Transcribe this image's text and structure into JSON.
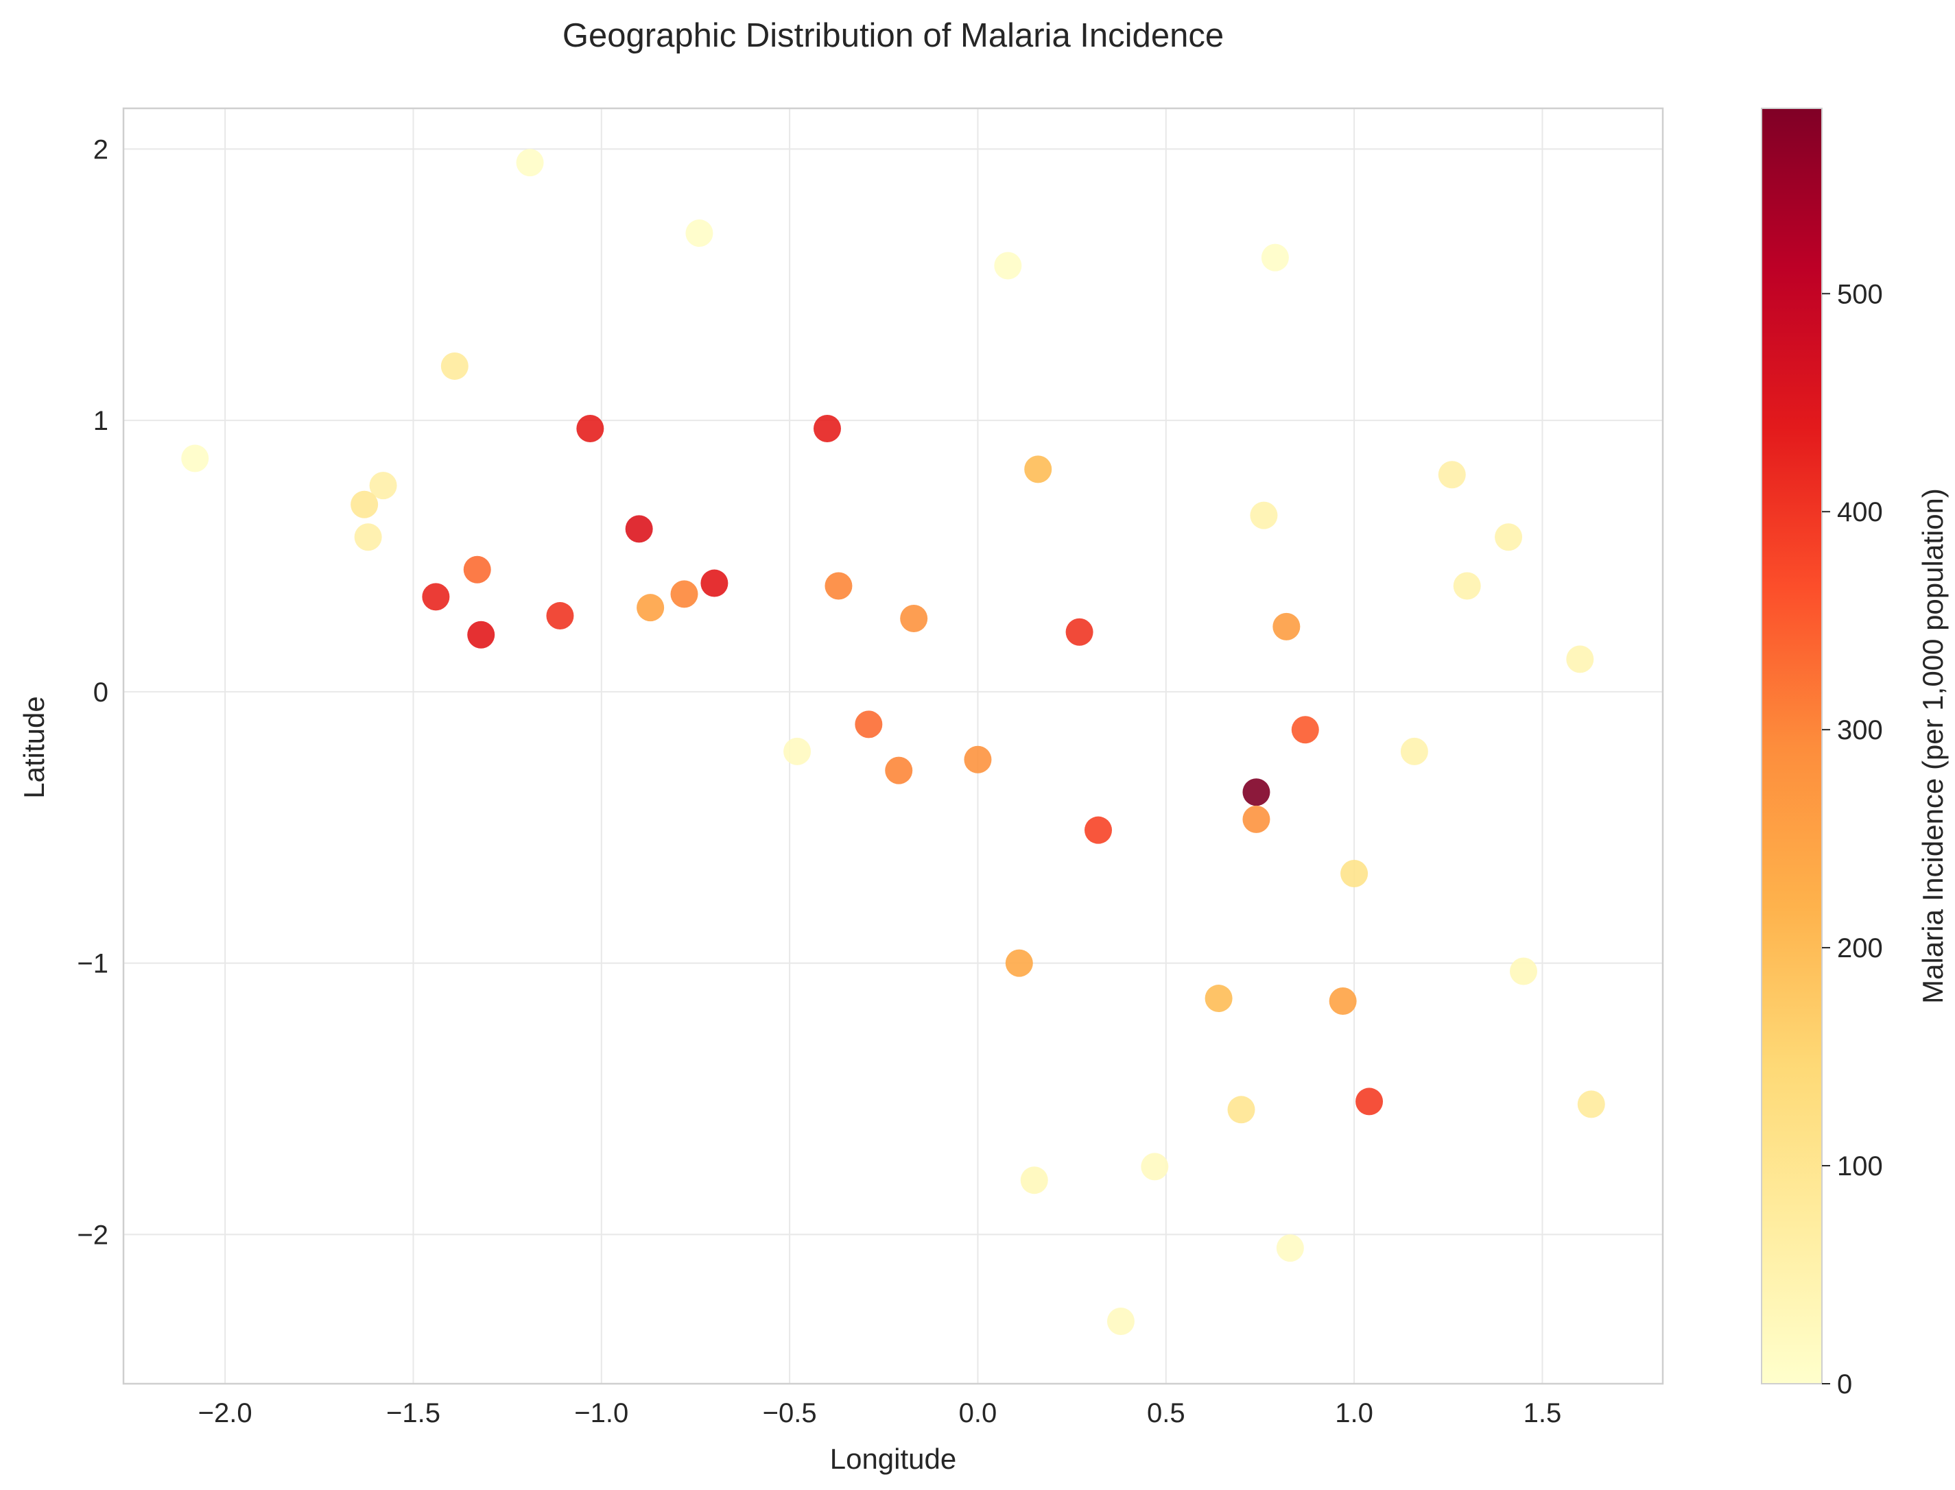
{
  "chart_data": {
    "type": "scatter",
    "title": "Geographic Distribution of Malaria Incidence",
    "xlabel": "Longitude",
    "ylabel": "Latitude",
    "xlim": [
      -2.27,
      1.82
    ],
    "ylim": [
      -2.55,
      2.15
    ],
    "xticks": [
      -2.0,
      -1.5,
      -1.0,
      -0.5,
      0.0,
      0.5,
      1.0,
      1.5
    ],
    "xtick_labels": [
      "−2.0",
      "−1.5",
      "−1.0",
      "−0.5",
      "0.0",
      "0.5",
      "1.0",
      "1.5"
    ],
    "yticks": [
      2,
      1,
      0,
      -1,
      -2
    ],
    "ytick_labels": [
      "2",
      "1",
      "0",
      "−1",
      "−2"
    ],
    "grid": true,
    "colormap": "YlOrRd",
    "colorbar": {
      "label": "Malaria Incidence (per 1,000 population)",
      "min": 0,
      "max": 585,
      "ticks": [
        0,
        100,
        200,
        300,
        400,
        500
      ],
      "tick_labels": [
        "0",
        "100",
        "200",
        "300",
        "400",
        "500"
      ],
      "stops": [
        "#ffffcc",
        "#ffeda0",
        "#fed976",
        "#feb24c",
        "#fd8d3c",
        "#fc4e2a",
        "#e31a1c",
        "#bd0026",
        "#800026"
      ]
    },
    "points": [
      {
        "x": -2.08,
        "y": 0.86,
        "value": 10
      },
      {
        "x": -1.19,
        "y": 1.95,
        "value": 10
      },
      {
        "x": -0.74,
        "y": 1.69,
        "value": 10
      },
      {
        "x": 0.08,
        "y": 1.57,
        "value": 10
      },
      {
        "x": 0.79,
        "y": 1.6,
        "value": 10
      },
      {
        "x": -1.39,
        "y": 1.2,
        "value": 80
      },
      {
        "x": -1.03,
        "y": 0.97,
        "value": 430
      },
      {
        "x": -0.4,
        "y": 0.97,
        "value": 430
      },
      {
        "x": 0.16,
        "y": 0.82,
        "value": 200
      },
      {
        "x": 1.26,
        "y": 0.8,
        "value": 60
      },
      {
        "x": -1.58,
        "y": 0.76,
        "value": 60
      },
      {
        "x": -1.63,
        "y": 0.69,
        "value": 90
      },
      {
        "x": -1.62,
        "y": 0.57,
        "value": 60
      },
      {
        "x": 0.76,
        "y": 0.65,
        "value": 50
      },
      {
        "x": -0.9,
        "y": 0.6,
        "value": 450
      },
      {
        "x": 1.41,
        "y": 0.57,
        "value": 50
      },
      {
        "x": -1.33,
        "y": 0.45,
        "value": 330
      },
      {
        "x": -0.7,
        "y": 0.4,
        "value": 440
      },
      {
        "x": -0.37,
        "y": 0.39,
        "value": 300
      },
      {
        "x": 1.3,
        "y": 0.39,
        "value": 50
      },
      {
        "x": -0.78,
        "y": 0.36,
        "value": 300
      },
      {
        "x": -1.44,
        "y": 0.35,
        "value": 420
      },
      {
        "x": -0.87,
        "y": 0.31,
        "value": 250
      },
      {
        "x": -1.11,
        "y": 0.28,
        "value": 400
      },
      {
        "x": -0.17,
        "y": 0.27,
        "value": 280
      },
      {
        "x": 0.82,
        "y": 0.24,
        "value": 260
      },
      {
        "x": 0.27,
        "y": 0.22,
        "value": 400
      },
      {
        "x": -1.32,
        "y": 0.21,
        "value": 440
      },
      {
        "x": 1.6,
        "y": 0.12,
        "value": 40
      },
      {
        "x": -0.29,
        "y": -0.12,
        "value": 330
      },
      {
        "x": 0.87,
        "y": -0.14,
        "value": 350
      },
      {
        "x": -0.48,
        "y": -0.22,
        "value": 20
      },
      {
        "x": 1.16,
        "y": -0.22,
        "value": 50
      },
      {
        "x": 0.0,
        "y": -0.25,
        "value": 280
      },
      {
        "x": -0.21,
        "y": -0.29,
        "value": 300
      },
      {
        "x": 0.74,
        "y": -0.37,
        "value": 585
      },
      {
        "x": 0.74,
        "y": -0.47,
        "value": 280
      },
      {
        "x": 0.32,
        "y": -0.51,
        "value": 380
      },
      {
        "x": 1.0,
        "y": -0.67,
        "value": 110
      },
      {
        "x": 0.11,
        "y": -1.0,
        "value": 240
      },
      {
        "x": 1.45,
        "y": -1.03,
        "value": 30
      },
      {
        "x": 0.64,
        "y": -1.13,
        "value": 200
      },
      {
        "x": 0.97,
        "y": -1.14,
        "value": 250
      },
      {
        "x": 0.7,
        "y": -1.54,
        "value": 100
      },
      {
        "x": 1.04,
        "y": -1.51,
        "value": 390
      },
      {
        "x": 1.63,
        "y": -1.52,
        "value": 80
      },
      {
        "x": 0.47,
        "y": -1.75,
        "value": 20
      },
      {
        "x": 0.15,
        "y": -1.8,
        "value": 30
      },
      {
        "x": 0.83,
        "y": -2.05,
        "value": 15
      },
      {
        "x": 0.38,
        "y": -2.32,
        "value": 20
      }
    ]
  }
}
